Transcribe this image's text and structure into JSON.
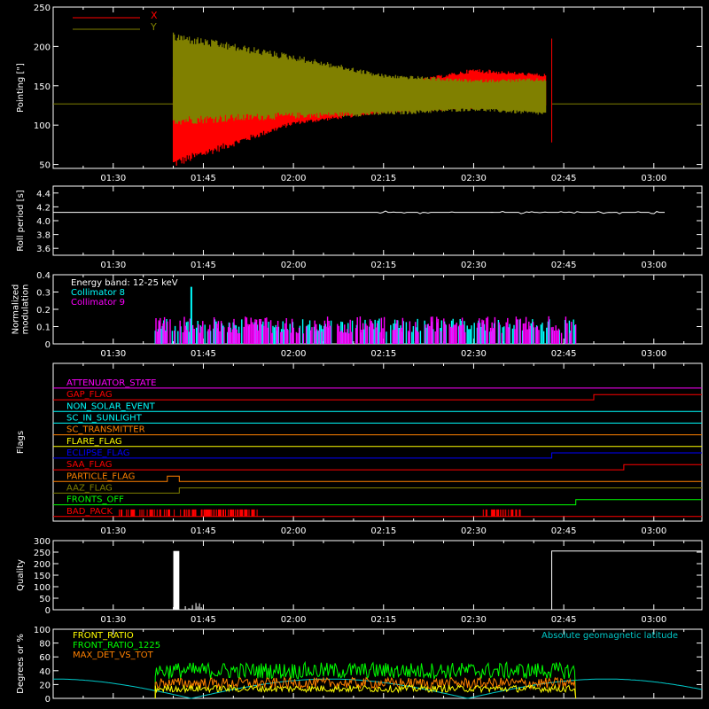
{
  "colors": {
    "background": "#000000",
    "axes": "#ffffff",
    "x_series": "#ff0000",
    "y_series": "#808000",
    "collimator_8": "#00ffff",
    "collimator_9": "#ff00ff",
    "front_ratio": "#ffff00",
    "front_ratio_1225": "#00ff00",
    "max_det_vs_tot": "#ff8000",
    "geomag": "#00c8c8"
  },
  "time_axis": {
    "start": "01:20",
    "end": "03:08",
    "ticks": [
      "01:30",
      "01:45",
      "02:00",
      "02:15",
      "02:30",
      "02:45",
      "03:00"
    ]
  },
  "chart_data": [
    {
      "type": "line",
      "panel": "pointing",
      "ylabel": "Pointing [\"]",
      "ylim": [
        45,
        250
      ],
      "yticks": [
        "50",
        "100",
        "150",
        "200",
        "250"
      ],
      "series": [
        {
          "name": "X",
          "color_key": "x_series",
          "description_points": [
            {
              "t": "01:20",
              "center": 127
            },
            {
              "t": "01:40",
              "center": 127
            },
            {
              "t": "01:40",
              "low": 45,
              "high": 165
            },
            {
              "t": "02:00",
              "low": 100,
              "high": 150
            },
            {
              "t": "02:15",
              "low": 115,
              "high": 150
            },
            {
              "t": "02:30",
              "low": 120,
              "high": 172
            },
            {
              "t": "02:42",
              "low": 125,
              "high": 165
            },
            {
              "t": "02:43",
              "center": 127
            },
            {
              "t": "03:08",
              "center": 127
            }
          ]
        },
        {
          "name": "Y",
          "color_key": "y_series",
          "description_points": [
            {
              "t": "01:20",
              "center": 127
            },
            {
              "t": "01:40",
              "center": 127
            },
            {
              "t": "01:40",
              "low": 100,
              "high": 218
            },
            {
              "t": "02:00",
              "low": 108,
              "high": 190
            },
            {
              "t": "02:15",
              "low": 112,
              "high": 165
            },
            {
              "t": "02:30",
              "low": 118,
              "high": 158
            },
            {
              "t": "02:42",
              "low": 112,
              "high": 160
            },
            {
              "t": "02:43",
              "center": 127
            },
            {
              "t": "03:08",
              "center": 127
            }
          ]
        }
      ]
    },
    {
      "type": "line",
      "panel": "roll_period",
      "ylabel": "Roll period [s]",
      "ylim": [
        3.5,
        4.5
      ],
      "yticks": [
        "3.6",
        "3.8",
        "4.0",
        "4.2",
        "4.4"
      ],
      "series": [
        {
          "name": "",
          "value": 4.12,
          "t_start": "01:20",
          "t_end": "03:02"
        }
      ]
    },
    {
      "type": "bar",
      "panel": "modulation",
      "ylabel": "Normalized modulation",
      "ylim": [
        0,
        0.4
      ],
      "yticks": [
        "0",
        "0.1",
        "0.2",
        "0.3",
        "0.4"
      ],
      "annotations": [
        "Energy band: 12-25 keV",
        "Collimator 8",
        "Collimator 9"
      ],
      "t_start": "01:37",
      "t_end": "02:47",
      "baseline": 0.09,
      "peak": 0.33
    },
    {
      "type": "line",
      "panel": "flags",
      "ylabel": "Flags",
      "flags": [
        {
          "name": "ATTENUATOR_STATE",
          "color": "#ff00ff",
          "transitions": []
        },
        {
          "name": "GAP_FLAG",
          "color": "#ff0000",
          "transitions": [
            {
              "t": "02:50",
              "state": 1
            }
          ]
        },
        {
          "name": "NON_SOLAR_EVENT",
          "color": "#00ffff",
          "transitions": []
        },
        {
          "name": "SC_IN_SUNLIGHT",
          "color": "#00ffff",
          "transitions": []
        },
        {
          "name": "SC_TRANSMITTER",
          "color": "#ff8000",
          "transitions": []
        },
        {
          "name": "FLARE_FLAG",
          "color": "#ffff00",
          "transitions": []
        },
        {
          "name": "ECLIPSE_FLAG",
          "color": "#0000ff",
          "transitions": [
            {
              "t": "01:41",
              "state": 0
            },
            {
              "t": "02:43",
              "state": 1
            }
          ]
        },
        {
          "name": "SAA_FLAG",
          "color": "#ff0000",
          "transitions": [
            {
              "t": "02:55",
              "state": 1
            }
          ]
        },
        {
          "name": "PARTICLE_FLAG",
          "color": "#ff8000",
          "transitions": [
            {
              "t": "01:39",
              "state": 1
            },
            {
              "t": "01:41",
              "state": 0
            }
          ]
        },
        {
          "name": "AAZ_FLAG",
          "color": "#808000",
          "transitions": [
            {
              "t": "01:41",
              "state": 1
            }
          ]
        },
        {
          "name": "FRONTS_OFF",
          "color": "#00ff00",
          "transitions": [
            {
              "t": "01:37",
              "state": 0
            },
            {
              "t": "02:47",
              "state": 1
            }
          ]
        },
        {
          "name": "BAD_PACK",
          "color": "#ff0000",
          "transitions": []
        }
      ]
    },
    {
      "type": "bar",
      "panel": "quality",
      "ylabel": "Quality",
      "ylim": [
        0,
        300
      ],
      "yticks": [
        "0",
        "50",
        "100",
        "150",
        "200",
        "250",
        "300"
      ],
      "segments": [
        {
          "t_start": "01:20",
          "t_end": "01:40",
          "value": 0
        },
        {
          "t_start": "01:40",
          "t_end": "01:41",
          "value": 255
        },
        {
          "t_start": "01:42",
          "t_end": "01:45",
          "value": 30
        },
        {
          "t_start": "02:43",
          "t_end": "03:08",
          "value": 255
        }
      ]
    },
    {
      "type": "line",
      "panel": "ratios",
      "ylabel": "Degrees or %",
      "ylim": [
        0,
        100
      ],
      "yticks": [
        "0",
        "20",
        "40",
        "60",
        "80",
        "100"
      ],
      "series": [
        {
          "name": "FRONT_RATIO",
          "color_key": "front_ratio"
        },
        {
          "name": "FRONT_RATIO_1225",
          "color_key": "front_ratio_1225"
        },
        {
          "name": "MAX_DET_VS_TOT",
          "color_key": "max_det_vs_tot"
        },
        {
          "name": "Absolute geomagnetic latitude",
          "color_key": "geomag"
        }
      ]
    }
  ]
}
